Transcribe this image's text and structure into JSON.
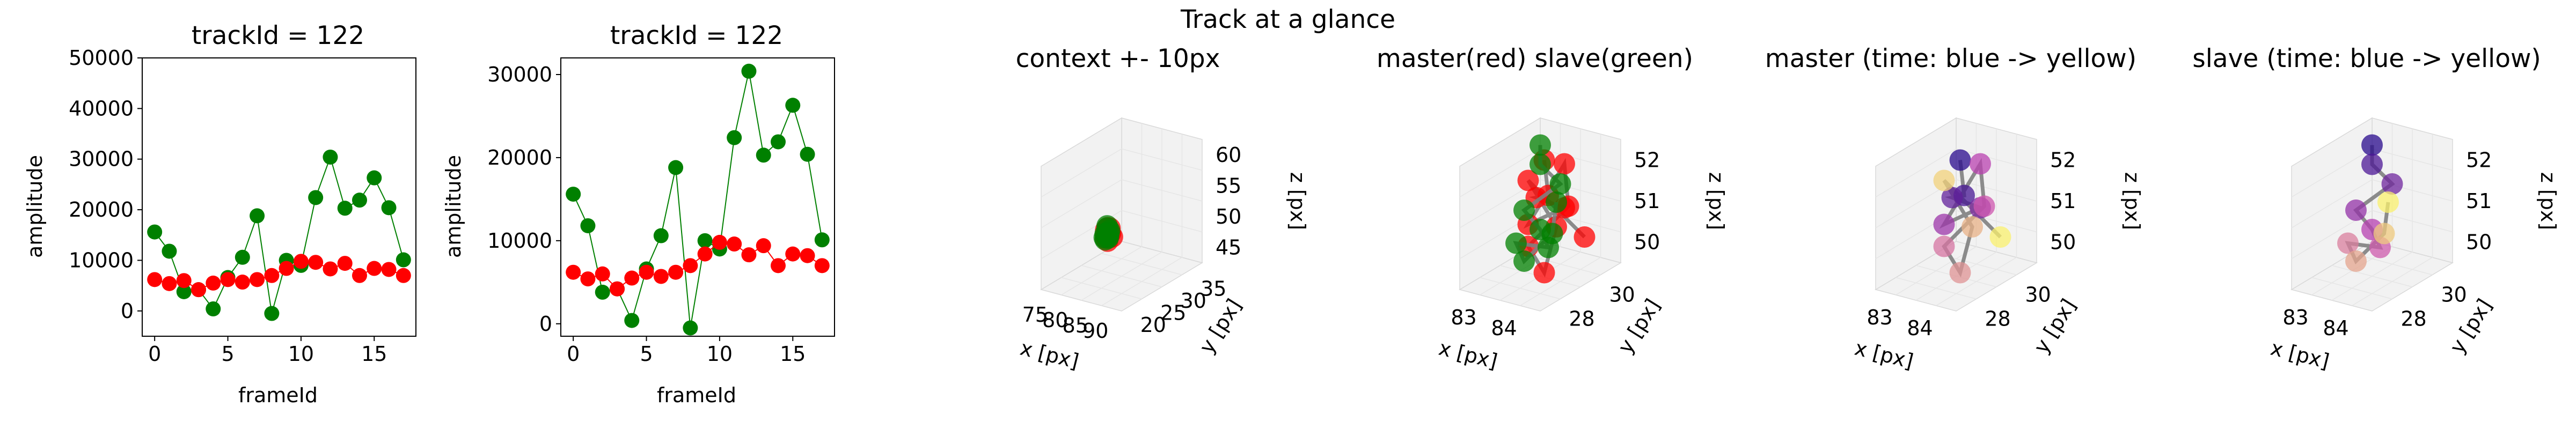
{
  "figure": {
    "suptitle": "Track at a glance"
  },
  "colors": {
    "master": "#ff0000",
    "slave": "#008000",
    "line3d": "#808080"
  },
  "chart_data": [
    {
      "type": "line",
      "title": "trackId = 122",
      "xlabel": "frameId",
      "ylabel": "amplitude",
      "xlim": [
        -0.85,
        17.85
      ],
      "ylim": [
        -5000,
        50000
      ],
      "xticks": [
        0,
        5,
        10,
        15
      ],
      "yticks": [
        0,
        10000,
        20000,
        30000,
        40000,
        50000
      ],
      "x": [
        0,
        1,
        2,
        3,
        4,
        5,
        6,
        7,
        8,
        9,
        10,
        11,
        12,
        13,
        14,
        15,
        16,
        17
      ],
      "series": [
        {
          "color": "#008000",
          "values": [
            15600,
            11800,
            3800,
            4200,
            400,
            6600,
            10600,
            18800,
            -500,
            10000,
            9000,
            22400,
            30400,
            20300,
            21900,
            26300,
            20400,
            10100
          ]
        },
        {
          "color": "#ff0000",
          "values": [
            6200,
            5400,
            6000,
            4200,
            5500,
            6200,
            5700,
            6200,
            7000,
            8400,
            9800,
            9600,
            8300,
            9400,
            7000,
            8400,
            8200,
            7000
          ]
        }
      ]
    },
    {
      "type": "line",
      "title": "trackId = 122",
      "xlabel": "frameId",
      "ylabel": "amplitude",
      "xlim": [
        -0.85,
        17.85
      ],
      "ylim": [
        -1500,
        32000
      ],
      "xticks": [
        0,
        5,
        10,
        15
      ],
      "yticks": [
        0,
        10000,
        20000,
        30000
      ],
      "x": [
        0,
        1,
        2,
        3,
        4,
        5,
        6,
        7,
        8,
        9,
        10,
        11,
        12,
        13,
        14,
        15,
        16,
        17
      ],
      "series": [
        {
          "color": "#008000",
          "values": [
            15600,
            11800,
            3800,
            4200,
            400,
            6600,
            10600,
            18800,
            -500,
            10000,
            9000,
            22400,
            30400,
            20300,
            21900,
            26300,
            20400,
            10100
          ]
        },
        {
          "color": "#ff0000",
          "values": [
            6200,
            5400,
            6000,
            4200,
            5500,
            6200,
            5700,
            6200,
            7000,
            8400,
            9800,
            9600,
            8300,
            9400,
            7000,
            8400,
            8200,
            7000
          ]
        }
      ]
    },
    {
      "type": "scatter3d",
      "title": "context +- 10px",
      "xlabel": "x [px]",
      "ylabel": "y [px]",
      "zlabel": "z [px]",
      "xticks": [
        "75",
        "80",
        "85",
        "90"
      ],
      "yticks": [
        "20",
        "25",
        "30",
        "35"
      ],
      "zticks": [
        "45",
        "50",
        "55",
        "60"
      ]
    },
    {
      "type": "scatter3d",
      "title": "master(red) slave(green)",
      "xlabel": "x [px]",
      "ylabel": "y [px]",
      "zlabel": "z [px]",
      "xticks": [
        "83",
        "84"
      ],
      "yticks": [
        "28",
        "30"
      ],
      "zticks": [
        "50",
        "51",
        "52"
      ]
    },
    {
      "type": "scatter3d",
      "title": "master (time: blue -> yellow)",
      "xlabel": "x [px]",
      "ylabel": "y [px]",
      "zlabel": "z [px]",
      "xticks": [
        "83",
        "84"
      ],
      "yticks": [
        "28",
        "30"
      ],
      "zticks": [
        "50",
        "51",
        "52"
      ]
    },
    {
      "type": "scatter3d",
      "title": "slave (time: blue -> yellow)",
      "xlabel": "x [px]",
      "ylabel": "y [px]",
      "zlabel": "z [px]",
      "xticks": [
        "83",
        "84"
      ],
      "yticks": [
        "28",
        "30"
      ],
      "zticks": [
        "50",
        "51",
        "52"
      ]
    }
  ]
}
